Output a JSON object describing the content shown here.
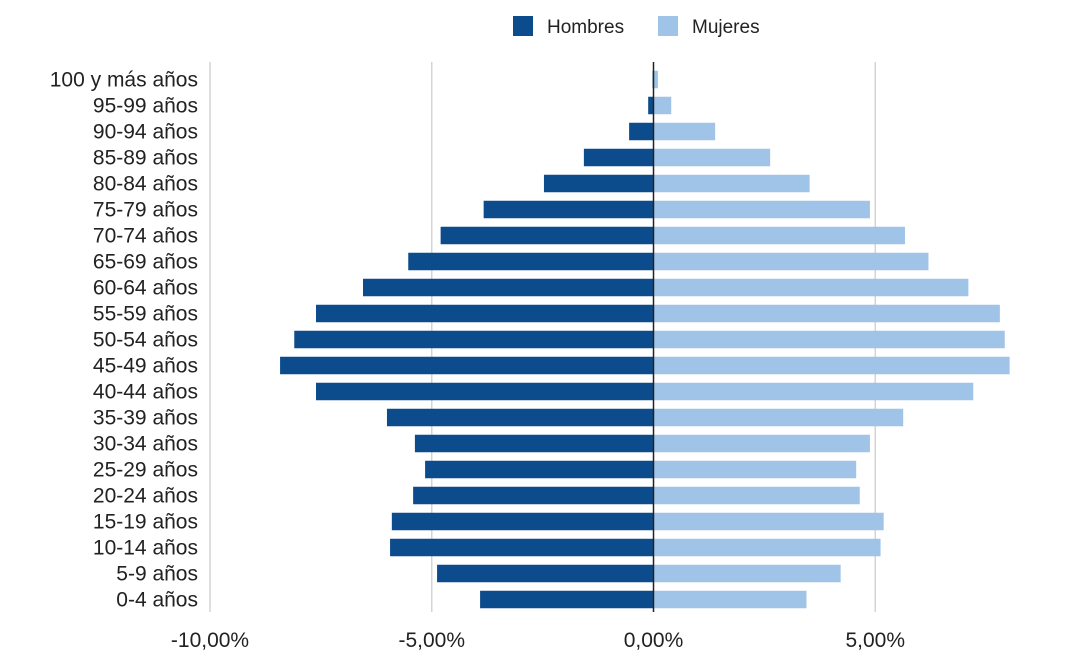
{
  "chart_data": {
    "type": "bar",
    "orientation": "horizontal",
    "categories": [
      "100 y más años",
      "95-99 años",
      "90-94 años",
      "85-89 años",
      "80-84 años",
      "75-79 años",
      "70-74 años",
      "65-69 años",
      "60-64 años",
      "55-59 años",
      "50-54 años",
      "45-49 años",
      "40-44 años",
      "35-39 años",
      "30-34 años",
      "25-29 años",
      "20-24 años",
      "15-19 años",
      "10-14 años",
      "5-9 años",
      "0-4 años"
    ],
    "series": [
      {
        "name": "Hombres",
        "color": "#0d4c8c",
        "values": [
          -0.02,
          -0.12,
          -0.55,
          -1.57,
          -2.47,
          -3.83,
          -4.8,
          -5.53,
          -6.55,
          -7.61,
          -8.1,
          -8.42,
          -7.61,
          -6.01,
          -5.38,
          -5.15,
          -5.42,
          -5.9,
          -5.94,
          -4.88,
          -3.91
        ]
      },
      {
        "name": "Mujeres",
        "color": "#a0c4e8",
        "values": [
          0.1,
          0.4,
          1.39,
          2.63,
          3.52,
          4.88,
          5.67,
          6.2,
          7.1,
          7.81,
          7.92,
          8.03,
          7.21,
          5.63,
          4.88,
          4.57,
          4.65,
          5.19,
          5.12,
          4.22,
          3.45
        ]
      }
    ],
    "xticks": [
      "-10,00%",
      "-5,00%",
      "0,00%",
      "5,00%"
    ],
    "xtick_values": [
      -10,
      -5,
      0,
      5
    ],
    "xlim": [
      -10,
      8.2
    ],
    "grid": true,
    "legend_position": "top-center",
    "title": "",
    "xlabel": "",
    "ylabel": ""
  }
}
